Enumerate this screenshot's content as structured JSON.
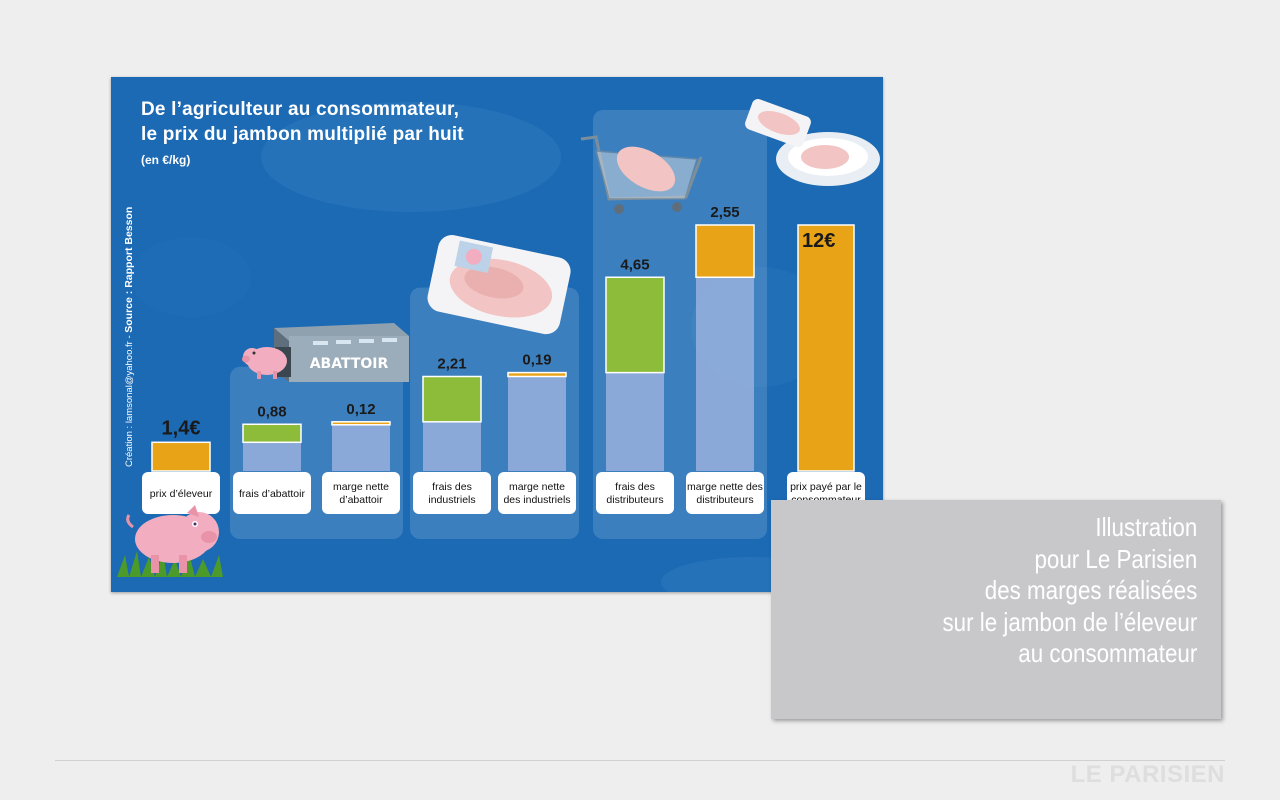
{
  "chart_data": {
    "type": "bar",
    "title_line1": "De l’agriculteur au consommateur,",
    "title_line2": "le prix du jambon multiplié par huit",
    "unit": "(en €/kg)",
    "credit_text": "Création : lamsonal@yahoo.fr - ",
    "source_text": "Source : Rapport Besson",
    "categories": [
      "prix d’éleveur",
      "frais d’abattoir",
      "marge nette d’abattoir",
      "frais des industriels",
      "marge nette des industriels",
      "frais des distributeurs",
      "marge nette des distributeurs",
      "prix payé par le consommateur"
    ],
    "values": [
      1.4,
      0.88,
      0.12,
      2.21,
      0.19,
      4.65,
      2.55,
      12
    ],
    "value_labels": [
      "1,4€",
      "0,88",
      "0,12",
      "2,21",
      "0,19",
      "4,65",
      "2,55",
      "12€"
    ],
    "stacked_waterfall": true,
    "ylim": [
      0,
      12
    ],
    "colors": {
      "background": "#1c6ab4",
      "margin": "#e8a317",
      "costs": "#8dbb3a",
      "cumulative": "#92aedc"
    },
    "abattoir_sign": "ABATTOIR"
  },
  "caption": {
    "lines": [
      "Illustration",
      "pour Le Parisien",
      "des marges réalisées",
      "sur le jambon de l’éleveur",
      "au consommateur"
    ]
  },
  "brand": "LE PARISIEN"
}
